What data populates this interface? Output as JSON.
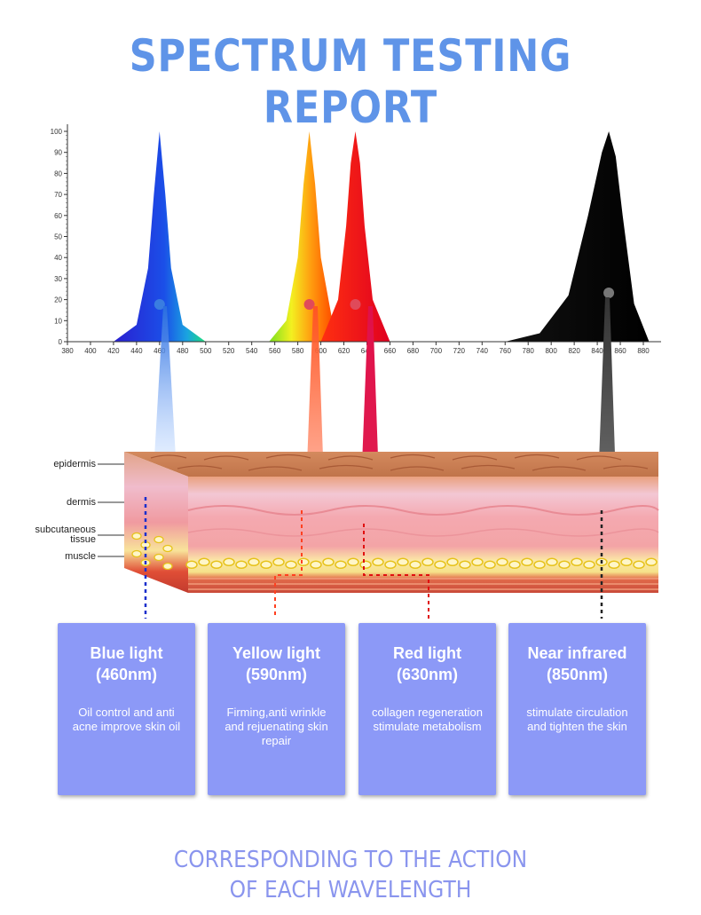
{
  "page": {
    "title": "SPECTRUM TESTING REPORT"
  },
  "chart_data": {
    "type": "area",
    "xlim": [
      380,
      890
    ],
    "ylim": [
      0,
      100
    ],
    "x_ticks": [
      380,
      400,
      420,
      440,
      460,
      480,
      500,
      520,
      540,
      560,
      580,
      600,
      620,
      640,
      660,
      680,
      700,
      720,
      740,
      760,
      780,
      800,
      820,
      840,
      860,
      880
    ],
    "y_ticks": [
      0,
      10,
      20,
      30,
      40,
      50,
      60,
      70,
      80,
      90,
      100
    ],
    "grid": false,
    "series": [
      {
        "peak": 460,
        "values": {
          "x": [
            420,
            440,
            450,
            455,
            460,
            465,
            470,
            480,
            500
          ],
          "y": [
            0,
            8,
            35,
            70,
            100,
            70,
            35,
            8,
            0
          ]
        },
        "color": "#1b2fd8"
      },
      {
        "peak": 590,
        "values": {
          "x": [
            555,
            570,
            580,
            585,
            590,
            595,
            600,
            610,
            620
          ],
          "y": [
            0,
            10,
            40,
            75,
            100,
            75,
            40,
            10,
            0
          ]
        },
        "color": "#ff6a00"
      },
      {
        "peak": 630,
        "values": {
          "x": [
            600,
            615,
            622,
            626,
            630,
            634,
            638,
            645,
            660
          ],
          "y": [
            0,
            20,
            55,
            85,
            100,
            85,
            55,
            20,
            0
          ]
        },
        "color": "#ff1a1a"
      },
      {
        "peak": 850,
        "values": {
          "x": [
            760,
            790,
            815,
            832,
            844,
            850,
            856,
            862,
            872,
            885
          ],
          "y": [
            0,
            4,
            22,
            60,
            90,
            100,
            88,
            60,
            18,
            0
          ]
        },
        "color": "#000000"
      }
    ]
  },
  "skin_layers": {
    "epidermis": "epidermis",
    "dermis": "dermis",
    "subcutaneous_line1": "subcutaneous",
    "subcutaneous_line2": "tissue",
    "muscle": "muscle"
  },
  "cards": [
    {
      "name": "Blue light",
      "wavelength": "(460nm)",
      "description": "Oil control and anti acne improve skin oil",
      "color": "#1b2fd8"
    },
    {
      "name": "Yellow light",
      "wavelength": "(590nm)",
      "description": "Firming,anti wrinkle and rejuenating skin repair",
      "color": "#ff6a00"
    },
    {
      "name": "Red light",
      "wavelength": "(630nm)",
      "description": "collagen regeneration stimulate metabolism",
      "color": "#ff1a1a"
    },
    {
      "name": "Near infrared",
      "wavelength": "(850nm)",
      "description": "stimulate circulation and tighten the skin",
      "color": "#000000"
    }
  ],
  "footer": {
    "line1": "CORRESPONDING TO THE ACTION",
    "line2": "OF EACH WAVELENGTH"
  },
  "colors": {
    "title": "#5f94e8",
    "card_bg": "#8c99f7",
    "footer": "#8a95ee"
  }
}
